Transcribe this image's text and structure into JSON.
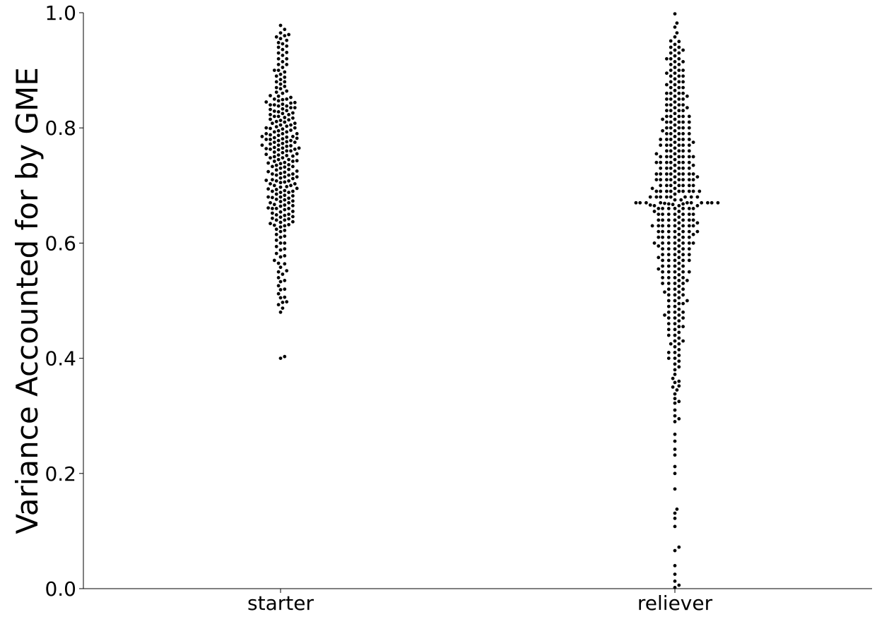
{
  "chart_data": {
    "type": "scatter",
    "subtype": "swarm",
    "title": "",
    "xlabel": "",
    "ylabel": "Variance Accounted for by GME",
    "categories": [
      "starter",
      "reliever"
    ],
    "ylim": [
      0.0,
      1.0
    ],
    "yticks": [
      "0.0",
      "0.2",
      "0.4",
      "0.6",
      "0.8",
      "1.0"
    ],
    "grid": false,
    "marker_color": "#000000",
    "series": [
      {
        "category": "starter",
        "values": [
          0.978,
          0.971,
          0.965,
          0.962,
          0.958,
          0.952,
          0.946,
          0.942,
          0.936,
          0.931,
          0.926,
          0.92,
          0.915,
          0.91,
          0.905,
          0.9,
          0.897,
          0.893,
          0.888,
          0.884,
          0.88,
          0.876,
          0.872,
          0.868,
          0.864,
          0.86,
          0.856,
          0.853,
          0.85,
          0.847,
          0.844,
          0.841,
          0.838,
          0.835,
          0.832,
          0.829,
          0.826,
          0.823,
          0.82,
          0.817,
          0.814,
          0.811,
          0.808,
          0.805,
          0.802,
          0.799,
          0.796,
          0.793,
          0.79,
          0.787,
          0.784,
          0.781,
          0.778,
          0.775,
          0.772,
          0.769,
          0.766,
          0.763,
          0.76,
          0.757,
          0.754,
          0.751,
          0.748,
          0.745,
          0.742,
          0.739,
          0.736,
          0.733,
          0.73,
          0.727,
          0.724,
          0.721,
          0.718,
          0.715,
          0.712,
          0.709,
          0.706,
          0.703,
          0.7,
          0.697,
          0.694,
          0.691,
          0.688,
          0.685,
          0.682,
          0.679,
          0.676,
          0.673,
          0.67,
          0.667,
          0.664,
          0.661,
          0.658,
          0.655,
          0.652,
          0.649,
          0.646,
          0.643,
          0.64,
          0.637,
          0.634,
          0.631,
          0.628,
          0.624,
          0.62,
          0.615,
          0.61,
          0.605,
          0.6,
          0.594,
          0.588,
          0.582,
          0.576,
          0.57,
          0.564,
          0.558,
          0.552,
          0.546,
          0.54,
          0.533,
          0.526,
          0.519,
          0.512,
          0.505,
          0.498,
          0.493,
          0.487,
          0.48,
          0.403,
          0.4,
          0.96,
          0.955,
          0.948,
          0.94,
          0.93,
          0.92,
          0.91,
          0.9,
          0.89,
          0.88,
          0.87,
          0.862,
          0.855,
          0.849,
          0.843,
          0.838,
          0.833,
          0.828,
          0.823,
          0.818,
          0.813,
          0.808,
          0.803,
          0.798,
          0.793,
          0.788,
          0.783,
          0.778,
          0.773,
          0.768,
          0.763,
          0.758,
          0.753,
          0.748,
          0.743,
          0.738,
          0.733,
          0.728,
          0.723,
          0.718,
          0.713,
          0.708,
          0.703,
          0.698,
          0.693,
          0.688,
          0.683,
          0.678,
          0.672,
          0.666,
          0.66,
          0.654,
          0.648,
          0.642,
          0.636,
          0.63,
          0.622,
          0.612,
          0.6,
          0.59,
          0.578,
          0.565,
          0.55,
          0.535,
          0.52,
          0.506,
          0.497,
          0.845,
          0.84,
          0.835,
          0.825,
          0.815,
          0.805,
          0.795,
          0.785,
          0.78,
          0.775,
          0.765,
          0.76,
          0.755,
          0.745,
          0.74,
          0.735,
          0.725,
          0.72,
          0.715,
          0.71,
          0.705,
          0.695,
          0.69,
          0.68,
          0.675,
          0.665,
          0.66,
          0.65,
          0.645,
          0.64,
          0.632,
          0.85,
          0.83,
          0.81,
          0.8,
          0.79,
          0.782,
          0.776,
          0.77,
          0.762,
          0.752,
          0.742,
          0.732,
          0.72,
          0.708,
          0.7,
          0.69,
          0.68,
          0.67,
          0.66,
          0.78,
          0.765,
          0.75,
          0.84,
          0.82,
          0.8,
          0.79,
          0.785,
          0.77,
          0.764
        ]
      },
      {
        "category": "reliever",
        "values": [
          0.998,
          0.982,
          0.975,
          0.965,
          0.958,
          0.951,
          0.945,
          0.94,
          0.935,
          0.93,
          0.925,
          0.92,
          0.915,
          0.91,
          0.905,
          0.9,
          0.895,
          0.89,
          0.885,
          0.88,
          0.875,
          0.87,
          0.865,
          0.86,
          0.855,
          0.85,
          0.845,
          0.84,
          0.835,
          0.83,
          0.825,
          0.82,
          0.815,
          0.81,
          0.805,
          0.8,
          0.795,
          0.79,
          0.785,
          0.78,
          0.775,
          0.77,
          0.765,
          0.76,
          0.755,
          0.75,
          0.745,
          0.74,
          0.735,
          0.73,
          0.725,
          0.72,
          0.715,
          0.71,
          0.705,
          0.7,
          0.695,
          0.69,
          0.685,
          0.68,
          0.675,
          0.67,
          0.665,
          0.66,
          0.655,
          0.65,
          0.645,
          0.64,
          0.635,
          0.63,
          0.625,
          0.62,
          0.615,
          0.61,
          0.605,
          0.6,
          0.595,
          0.59,
          0.585,
          0.58,
          0.575,
          0.57,
          0.565,
          0.56,
          0.555,
          0.55,
          0.545,
          0.54,
          0.535,
          0.53,
          0.525,
          0.52,
          0.515,
          0.51,
          0.505,
          0.5,
          0.495,
          0.49,
          0.485,
          0.48,
          0.475,
          0.47,
          0.465,
          0.46,
          0.455,
          0.45,
          0.445,
          0.44,
          0.435,
          0.43,
          0.425,
          0.42,
          0.415,
          0.41,
          0.405,
          0.4,
          0.395,
          0.39,
          0.38,
          0.372,
          0.365,
          0.358,
          0.352,
          0.345,
          0.338,
          0.33,
          0.322,
          0.31,
          0.295,
          0.29,
          0.268,
          0.256,
          0.242,
          0.232,
          0.212,
          0.2,
          0.173,
          0.138,
          0.131,
          0.122,
          0.108,
          0.072,
          0.066,
          0.04,
          0.025,
          0.013,
          0.006,
          0.002,
          0.95,
          0.94,
          0.93,
          0.92,
          0.91,
          0.9,
          0.89,
          0.88,
          0.87,
          0.86,
          0.85,
          0.84,
          0.83,
          0.82,
          0.81,
          0.8,
          0.79,
          0.78,
          0.77,
          0.76,
          0.75,
          0.74,
          0.73,
          0.72,
          0.71,
          0.7,
          0.69,
          0.68,
          0.67,
          0.66,
          0.65,
          0.64,
          0.63,
          0.62,
          0.61,
          0.6,
          0.59,
          0.58,
          0.57,
          0.56,
          0.55,
          0.54,
          0.53,
          0.52,
          0.51,
          0.5,
          0.49,
          0.48,
          0.47,
          0.46,
          0.45,
          0.44,
          0.425,
          0.41,
          0.4,
          0.385,
          0.36,
          0.35,
          0.325,
          0.3,
          0.935,
          0.915,
          0.895,
          0.875,
          0.855,
          0.835,
          0.815,
          0.795,
          0.775,
          0.755,
          0.735,
          0.715,
          0.695,
          0.675,
          0.655,
          0.635,
          0.615,
          0.595,
          0.575,
          0.555,
          0.535,
          0.515,
          0.495,
          0.475,
          0.455,
          0.43,
          0.92,
          0.89,
          0.86,
          0.83,
          0.8,
          0.77,
          0.74,
          0.71,
          0.68,
          0.65,
          0.62,
          0.59,
          0.56,
          0.53,
          0.5,
          0.47,
          0.9,
          0.87,
          0.84,
          0.81,
          0.78,
          0.75,
          0.72,
          0.69,
          0.66,
          0.63,
          0.6,
          0.57,
          0.54,
          0.51,
          0.48,
          0.88,
          0.85,
          0.82,
          0.79,
          0.76,
          0.73,
          0.7,
          0.67,
          0.64,
          0.61,
          0.58,
          0.55,
          0.52,
          0.86,
          0.83,
          0.8,
          0.77,
          0.74,
          0.71,
          0.68,
          0.65,
          0.62,
          0.59,
          0.56,
          0.53,
          0.85,
          0.82,
          0.79,
          0.76,
          0.73,
          0.7,
          0.67,
          0.64,
          0.61,
          0.58,
          0.55,
          0.84,
          0.81,
          0.78,
          0.75,
          0.72,
          0.69,
          0.66,
          0.63,
          0.6,
          0.57,
          0.54,
          0.82,
          0.79,
          0.76,
          0.73,
          0.7,
          0.67,
          0.64,
          0.61,
          0.58,
          0.55,
          0.81,
          0.78,
          0.75,
          0.72,
          0.69,
          0.66,
          0.63,
          0.6,
          0.57,
          0.8,
          0.77,
          0.74,
          0.71,
          0.68,
          0.65,
          0.62,
          0.59,
          0.78,
          0.75,
          0.72,
          0.69,
          0.66,
          0.63,
          0.6,
          0.77,
          0.74,
          0.71,
          0.68,
          0.65,
          0.62,
          0.6,
          0.75,
          0.72,
          0.69,
          0.67,
          0.64,
          0.61,
          0.74,
          0.71,
          0.68,
          0.66,
          0.63,
          0.73,
          0.7,
          0.67,
          0.65,
          0.62,
          0.72,
          0.69,
          0.67,
          0.64,
          0.71,
          0.68,
          0.665,
          0.63,
          0.7,
          0.67,
          0.665,
          0.69,
          0.668,
          0.668,
          0.667,
          0.666,
          0.669,
          0.67
        ]
      }
    ]
  }
}
